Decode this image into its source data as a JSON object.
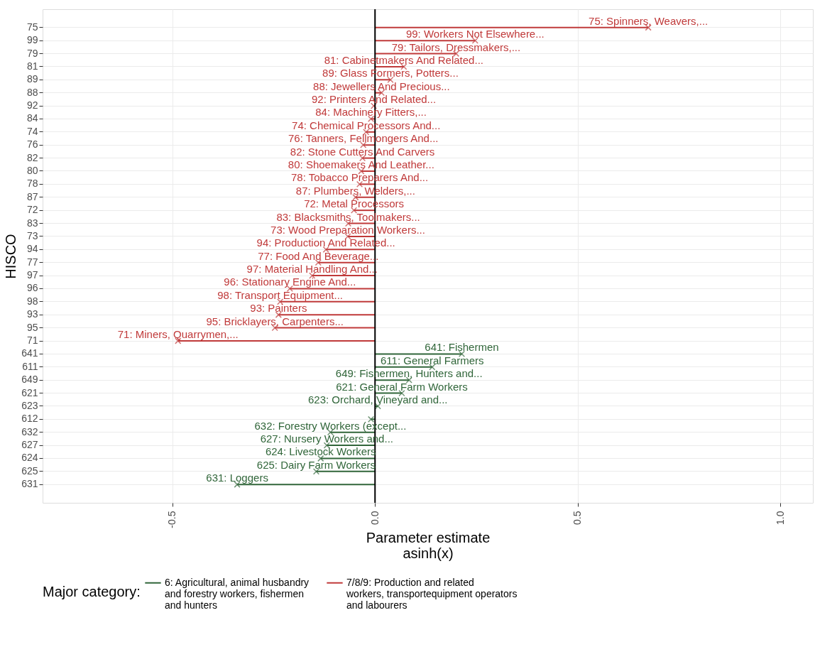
{
  "chart_data": {
    "type": "lollipop",
    "orientation": "horizontal",
    "xlabel": "Parameter estimate\nasinh(x)",
    "ylabel": "HISCO",
    "legend_title": "Major category:",
    "legend": "bottom",
    "grid": true,
    "marker": "cross",
    "categories": [
      "75",
      "99",
      "79",
      "81",
      "89",
      "88",
      "92",
      "84",
      "74",
      "76",
      "82",
      "80",
      "78",
      "87",
      "72",
      "83",
      "73",
      "94",
      "77",
      "97",
      "96",
      "98",
      "93",
      "95",
      "71",
      "641",
      "611",
      "649",
      "621",
      "623",
      "612",
      "632",
      "627",
      "624",
      "625",
      "631"
    ],
    "xlim": [
      -0.82,
      1.08
    ],
    "xticks": [
      -0.5,
      {
        "value": 0,
        "label": "0.0"
      },
      0.5,
      {
        "value": 1,
        "label": "1.0"
      }
    ],
    "series": [
      {
        "name": "6: Agricultural, animal husbandry\n and forestry workers, fishermen\nand hunters",
        "color": "#31663a",
        "values": [
          null,
          null,
          null,
          null,
          null,
          null,
          null,
          null,
          null,
          null,
          null,
          null,
          null,
          null,
          null,
          null,
          null,
          null,
          null,
          null,
          null,
          null,
          null,
          null,
          null,
          0.214,
          0.141,
          0.084,
          0.066,
          0.007,
          -0.01,
          -0.11,
          -0.119,
          -0.134,
          -0.145,
          -0.34
        ]
      },
      {
        "name": "7/8/9: Production and related\nworkers, transportequipment operators\nand labourers",
        "color": "#c03a3a",
        "values": [
          0.674,
          0.247,
          0.2,
          0.071,
          0.038,
          0.016,
          -0.003,
          -0.01,
          -0.022,
          -0.029,
          -0.031,
          -0.034,
          -0.038,
          -0.048,
          -0.052,
          -0.066,
          -0.067,
          -0.121,
          -0.14,
          -0.155,
          -0.21,
          -0.234,
          -0.238,
          -0.247,
          -0.486,
          null,
          null,
          null,
          null,
          null,
          null,
          null,
          null,
          null,
          null,
          null
        ]
      }
    ],
    "ref_lines": [
      {
        "axis": "x",
        "value": 0,
        "color": "#000000"
      }
    ],
    "annotations": [
      {
        "text": "75: Spinners, Weavers,...",
        "x": 0.674,
        "y": "75"
      },
      {
        "text": "99: Workers Not Elsewhere...",
        "x": 0.247,
        "y": "99"
      },
      {
        "text": "79: Tailors, Dressmakers,...",
        "x": 0.2,
        "y": "79"
      },
      {
        "text": "81: Cabinetmakers And Related...",
        "x": 0.071,
        "y": "81"
      },
      {
        "text": "89: Glass Formers, Potters...",
        "x": 0.038,
        "y": "89"
      },
      {
        "text": "88: Jewellers And Precious...",
        "x": 0.016,
        "y": "88"
      },
      {
        "text": "92: Printers And Related...",
        "x": -0.003,
        "y": "92"
      },
      {
        "text": "84: Machinery Fitters,...",
        "x": -0.01,
        "y": "84"
      },
      {
        "text": "74: Chemical Processors And...",
        "x": -0.022,
        "y": "74"
      },
      {
        "text": "76: Tanners, Fellmongers And...",
        "x": -0.029,
        "y": "76"
      },
      {
        "text": "82: Stone Cutters And Carvers",
        "x": -0.031,
        "y": "82"
      },
      {
        "text": "80: Shoemakers And Leather...",
        "x": -0.034,
        "y": "80"
      },
      {
        "text": "78: Tobacco Preparers And...",
        "x": -0.038,
        "y": "78"
      },
      {
        "text": "87: Plumbers, Welders,...",
        "x": -0.048,
        "y": "87"
      },
      {
        "text": "72: Metal Processors",
        "x": -0.052,
        "y": "72"
      },
      {
        "text": "83: Blacksmiths, Toolmakers...",
        "x": -0.066,
        "y": "83"
      },
      {
        "text": "73: Wood Preparation Workers...",
        "x": -0.067,
        "y": "73"
      },
      {
        "text": "94: Production And Related...",
        "x": -0.121,
        "y": "94"
      },
      {
        "text": "77: Food And Beverage...",
        "x": -0.14,
        "y": "77"
      },
      {
        "text": "97: Material Handling And...",
        "x": -0.155,
        "y": "97"
      },
      {
        "text": "96: Stationary Engine And...",
        "x": -0.21,
        "y": "96"
      },
      {
        "text": "98: Transport Equipment...",
        "x": -0.234,
        "y": "98"
      },
      {
        "text": "93: Painters",
        "x": -0.238,
        "y": "93"
      },
      {
        "text": "95: Bricklayers, Carpenters...",
        "x": -0.247,
        "y": "95"
      },
      {
        "text": "71: Miners, Quarrymen,...",
        "x": -0.486,
        "y": "71"
      },
      {
        "text": "641: Fishermen",
        "x": 0.214,
        "y": "641"
      },
      {
        "text": "611: General Farmers",
        "x": 0.141,
        "y": "611"
      },
      {
        "text": "649: Fishermen, Hunters and...",
        "x": 0.084,
        "y": "649"
      },
      {
        "text": "621: General Farm Workers",
        "x": 0.066,
        "y": "621"
      },
      {
        "text": "623: Orchard, Vineyard and...",
        "x": 0.007,
        "y": "623"
      },
      {
        "text": "632: Forestry Workers (except...",
        "x": -0.11,
        "y": "632"
      },
      {
        "text": "627: Nursery Workers and...",
        "x": -0.119,
        "y": "627"
      },
      {
        "text": "624: Livestock Workers",
        "x": -0.134,
        "y": "624"
      },
      {
        "text": "625: Dairy Farm Workers",
        "x": -0.145,
        "y": "625"
      },
      {
        "text": "631: Loggers",
        "x": -0.34,
        "y": "631"
      }
    ]
  }
}
